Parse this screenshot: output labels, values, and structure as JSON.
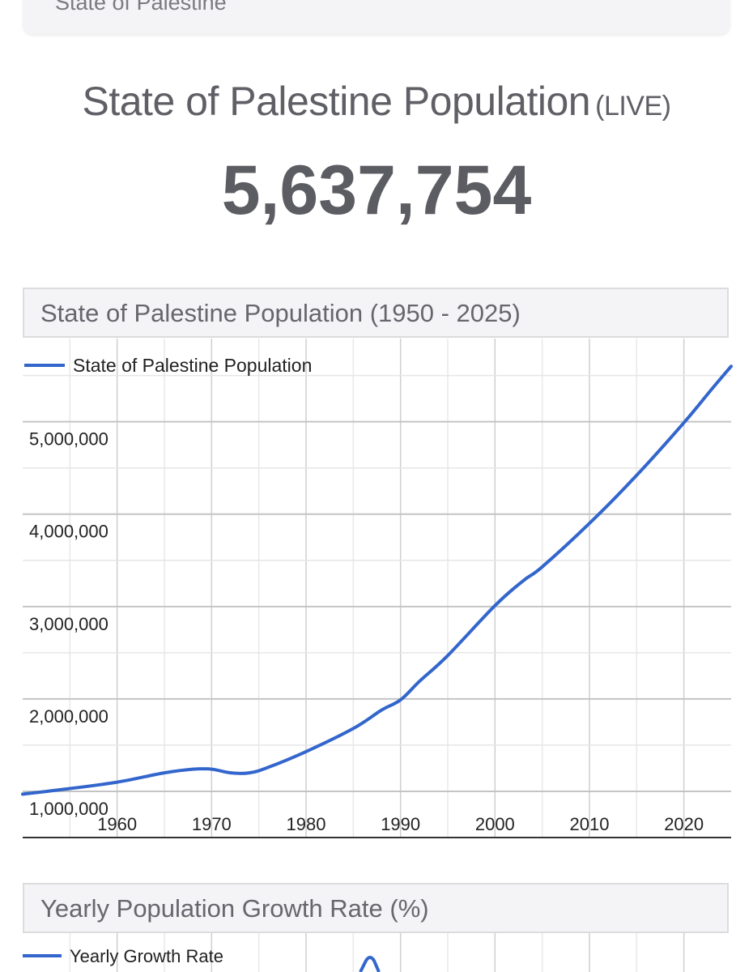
{
  "top_card": {
    "label": "State of Palestine"
  },
  "headline": {
    "title": "State of Palestine Population",
    "live_tag": "(LIVE)"
  },
  "counter": {
    "value": "5,637,754"
  },
  "colors": {
    "series": "#3366cc",
    "grid": "#cccccc",
    "text": "#222222"
  },
  "chart_data": [
    {
      "type": "line",
      "title": "State of Palestine Population (1950 - 2025)",
      "legend": [
        "State of Palestine Population"
      ],
      "legend_position": "top-left",
      "xlabel": "",
      "ylabel": "",
      "xlim": [
        1950,
        2025
      ],
      "ylim": [
        500000,
        5900000
      ],
      "x_ticks": [
        1960,
        1970,
        1980,
        1990,
        2000,
        2010,
        2020
      ],
      "x_tick_labels": [
        "1960",
        "1970",
        "1980",
        "1990",
        "2000",
        "2010",
        "2020"
      ],
      "y_ticks": [
        1000000,
        2000000,
        3000000,
        4000000,
        5000000
      ],
      "y_tick_labels": [
        "1,000,000",
        "2,000,000",
        "3,000,000",
        "4,000,000",
        "5,000,000"
      ],
      "grid": true,
      "series": [
        {
          "name": "State of Palestine Population",
          "x": [
            1950,
            1955,
            1960,
            1965,
            1968,
            1970,
            1972,
            1974,
            1976,
            1980,
            1985,
            1988,
            1990,
            1992,
            1995,
            2000,
            2003,
            2005,
            2010,
            2015,
            2020,
            2023,
            2025
          ],
          "y": [
            970000,
            1030000,
            1100000,
            1200000,
            1240000,
            1240000,
            1200000,
            1200000,
            1260000,
            1430000,
            1680000,
            1880000,
            1990000,
            2190000,
            2470000,
            3010000,
            3280000,
            3430000,
            3900000,
            4420000,
            4990000,
            5360000,
            5600000
          ]
        }
      ]
    },
    {
      "type": "line",
      "title": "Yearly Population Growth Rate (%)",
      "legend": [
        "Yearly Growth Rate"
      ],
      "legend_position": "top-left",
      "series": [
        {
          "name": "Yearly Growth Rate"
        }
      ]
    }
  ]
}
